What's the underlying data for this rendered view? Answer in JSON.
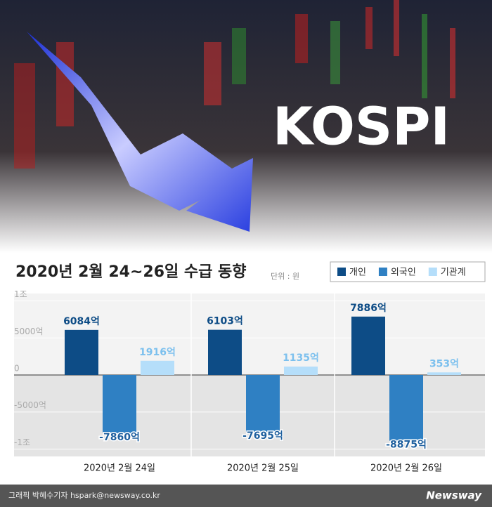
{
  "banner": "KOSPI",
  "footer": {
    "credit": "그래픽 박혜수기자 hspark@newsway.co.kr",
    "brand": "Newsway"
  },
  "chart_data": {
    "type": "bar",
    "title": "2020년 2월 24~26일 수급 동향",
    "unit_note": "단위 : 원",
    "categories": [
      "2020년 2월 24일",
      "2020년 2월 25일",
      "2020년 2월 26일"
    ],
    "series": [
      {
        "name": "개인",
        "color": "#0d4c86",
        "values": [
          6084,
          6103,
          7886
        ],
        "value_labels": [
          "6084억",
          "6103억",
          "7886억"
        ]
      },
      {
        "name": "외국인",
        "color": "#2f80c3",
        "values": [
          -7860,
          -7695,
          -8875
        ],
        "value_labels": [
          "-7860억",
          "-7695억",
          "-8875억"
        ]
      },
      {
        "name": "기관계",
        "color": "#b5defa",
        "values": [
          1916,
          1135,
          353
        ],
        "value_labels": [
          "1916억",
          "1135억",
          "353억"
        ]
      }
    ],
    "ylim": [
      -11000,
      11000
    ],
    "yticks": [
      {
        "value": 10000,
        "label": "1조"
      },
      {
        "value": 5000,
        "label": "5000억"
      },
      0,
      {
        "value": -5000,
        "label": "-5000억"
      },
      {
        "value": -10000,
        "label": "-1조"
      }
    ],
    "grid": true,
    "legend": "top-right"
  }
}
